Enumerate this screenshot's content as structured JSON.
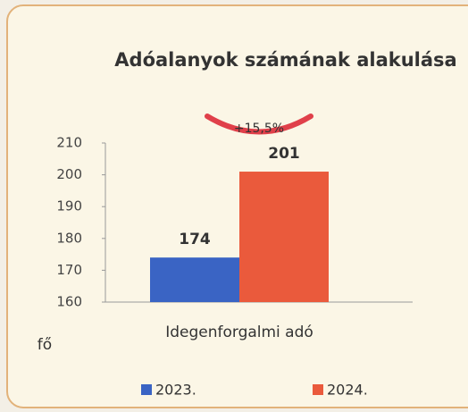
{
  "chart_data": {
    "type": "bar",
    "title": "Adóalanyok számának alakulása",
    "categories": [
      "Idegenforgalmi adó"
    ],
    "series": [
      {
        "name": "2023.",
        "color": "#3a64c4",
        "values": [
          174
        ]
      },
      {
        "name": "2024.",
        "color": "#ea5a3c",
        "values": [
          201
        ]
      }
    ],
    "ylim": [
      160,
      210
    ],
    "yticks": [
      160,
      170,
      180,
      190,
      200,
      210
    ],
    "y_axis_label": "fő",
    "annotation": "+15,5%",
    "grid": false,
    "legend": "bottom"
  }
}
